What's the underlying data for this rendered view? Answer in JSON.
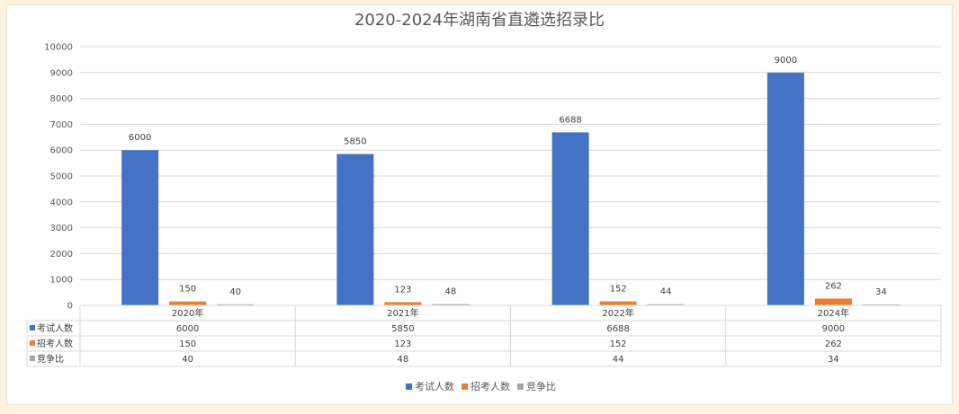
{
  "chart_data": {
    "type": "bar",
    "title": "2020-2024年湖南省直遴选招录比",
    "categories": [
      "2020年",
      "2021年",
      "2022年",
      "2024年"
    ],
    "series": [
      {
        "name": "考试人数",
        "values": [
          6000,
          5850,
          6688,
          9000
        ],
        "color": "#4472c4"
      },
      {
        "name": "招考人数",
        "values": [
          150,
          123,
          152,
          262
        ],
        "color": "#ed7d31"
      },
      {
        "name": "竞争比",
        "values": [
          40,
          48,
          44,
          34
        ],
        "color": "#a5a5a5"
      }
    ],
    "ylim": [
      0,
      10000
    ],
    "yticks": [
      0,
      1000,
      2000,
      3000,
      4000,
      5000,
      6000,
      7000,
      8000,
      9000,
      10000
    ],
    "grid": true,
    "data_table": true,
    "legend_position": "bottom"
  }
}
